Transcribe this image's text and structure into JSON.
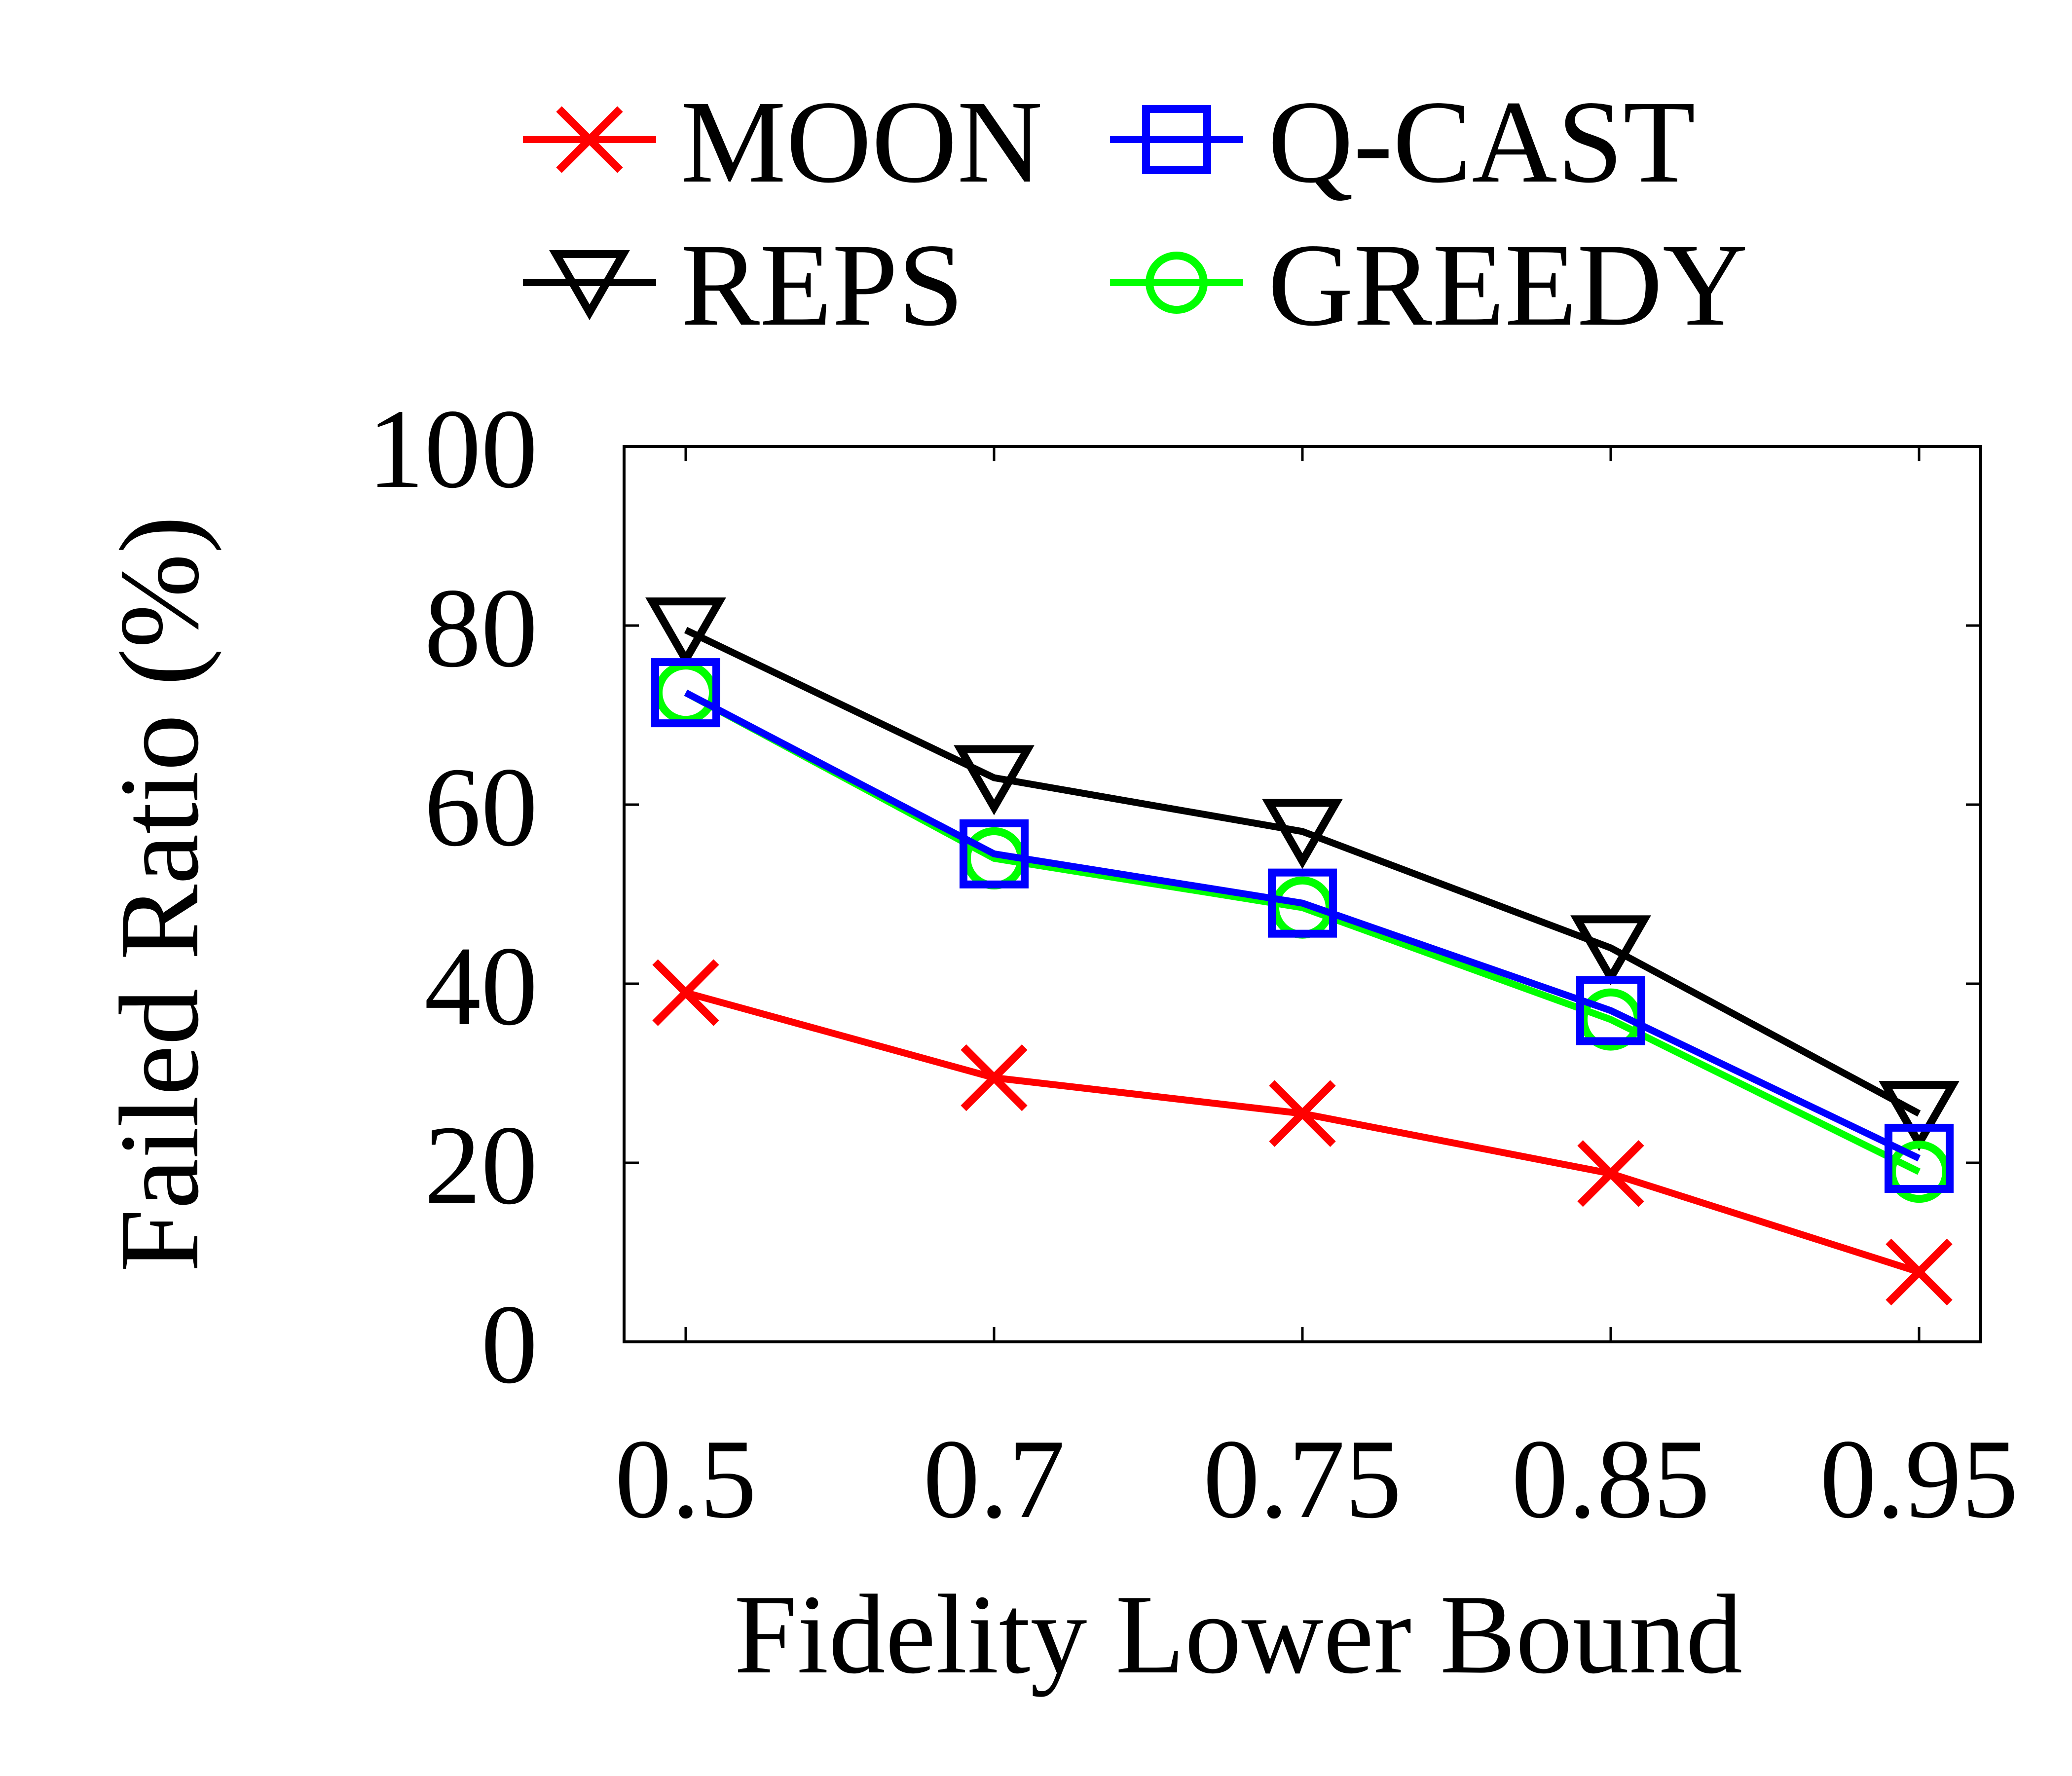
{
  "chart_data": {
    "type": "line",
    "title": "",
    "xlabel": "Fidelity Lower Bound",
    "ylabel": "Failed Ratio (%)",
    "categories": [
      "0.5",
      "0.7",
      "0.75",
      "0.85",
      "0.95"
    ],
    "ylim": [
      0,
      100
    ],
    "yticks": [
      "0",
      "20",
      "40",
      "60",
      "80",
      "100"
    ],
    "grid": false,
    "legend_position": "top",
    "series": [
      {
        "name": "MOON",
        "color": "#ff0000",
        "marker": "x",
        "values": [
          39,
          29.5,
          25.5,
          18.8,
          7.8
        ]
      },
      {
        "name": "Q-CAST",
        "color": "#0000ff",
        "marker": "square",
        "values": [
          72.5,
          54.5,
          49,
          37,
          20.5
        ]
      },
      {
        "name": "REPS",
        "color": "#000000",
        "marker": "triangle-down",
        "values": [
          79.5,
          63,
          57,
          44,
          25.5
        ]
      },
      {
        "name": "GREEDY",
        "color": "#00ff00",
        "marker": "circle",
        "values": [
          72.5,
          54,
          48.5,
          36,
          19
        ]
      }
    ]
  }
}
